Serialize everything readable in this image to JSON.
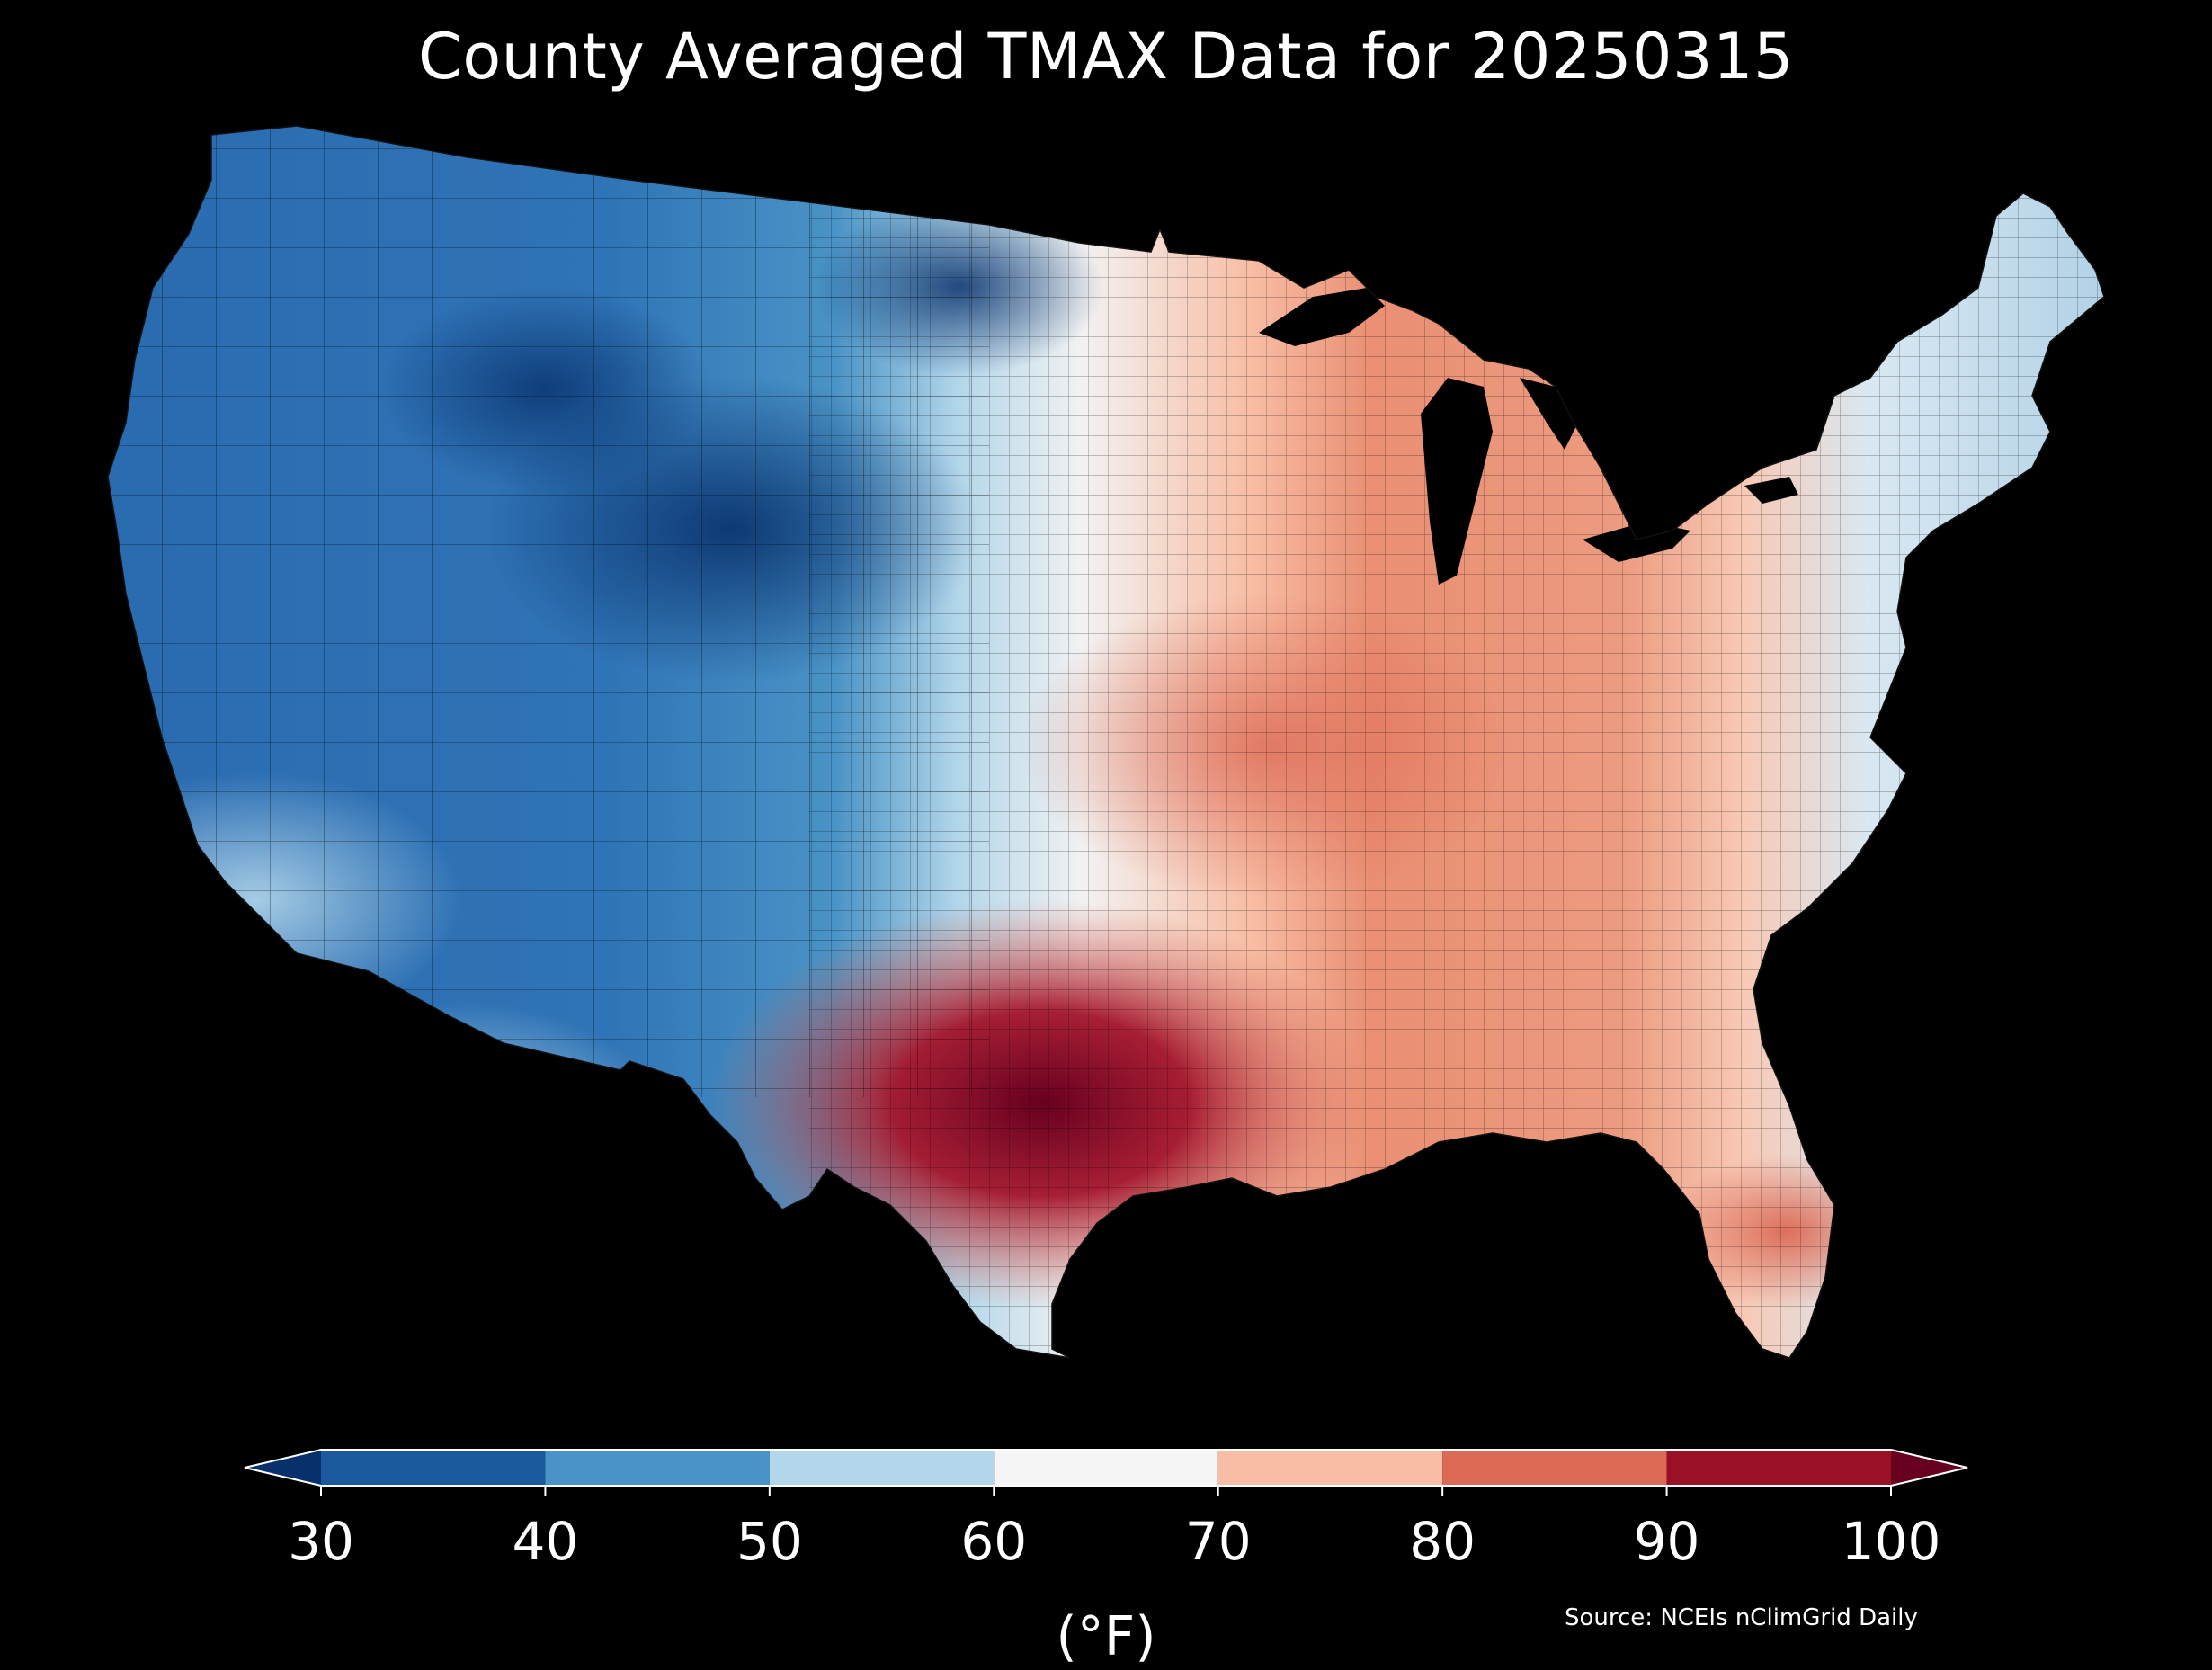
{
  "title": "County Averaged TMAX Data for 20250315",
  "colorbar": {
    "unit_label": "(°F)",
    "ticks": [
      "30",
      "40",
      "50",
      "60",
      "70",
      "80",
      "90",
      "100"
    ],
    "min": 30,
    "max": 100,
    "extend": "both",
    "bins": [
      {
        "from": 30,
        "to": 40,
        "color": "#1c5a9e"
      },
      {
        "from": 40,
        "to": 50,
        "color": "#4a93c6"
      },
      {
        "from": 50,
        "to": 60,
        "color": "#b3d6ea"
      },
      {
        "from": 60,
        "to": 70,
        "color": "#f5f5f5"
      },
      {
        "from": 70,
        "to": 80,
        "color": "#f8bea5"
      },
      {
        "from": 80,
        "to": 90,
        "color": "#dc6a55"
      },
      {
        "from": 90,
        "to": 100,
        "color": "#9a1126"
      }
    ],
    "under_color": "#08306b",
    "over_color": "#67001f"
  },
  "source": "Source: NCEIs nClimGrid Daily"
}
